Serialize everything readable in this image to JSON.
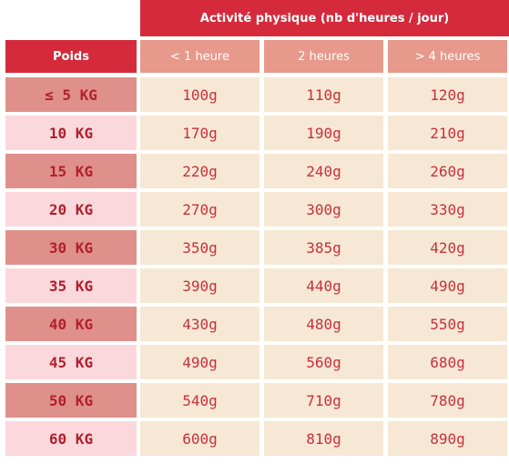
{
  "header": {
    "activity": "Activité physique (nb d'heures / jour)",
    "weight": "Poids",
    "columns": [
      "< 1 heure",
      "2 heures",
      "> 4 heures"
    ]
  },
  "rows": [
    {
      "weight": "≤ 5 KG",
      "values": [
        "100g",
        "110g",
        "120g"
      ]
    },
    {
      "weight": "10 KG",
      "values": [
        "170g",
        "190g",
        "210g"
      ]
    },
    {
      "weight": "15 KG",
      "values": [
        "220g",
        "240g",
        "260g"
      ]
    },
    {
      "weight": "20 KG",
      "values": [
        "270g",
        "300g",
        "330g"
      ]
    },
    {
      "weight": "30 KG",
      "values": [
        "350g",
        "385g",
        "420g"
      ]
    },
    {
      "weight": "35 KG",
      "values": [
        "390g",
        "440g",
        "490g"
      ]
    },
    {
      "weight": "40 KG",
      "values": [
        "430g",
        "480g",
        "550g"
      ]
    },
    {
      "weight": "45 KG",
      "values": [
        "490g",
        "560g",
        "680g"
      ]
    },
    {
      "weight": "50 KG",
      "values": [
        "540g",
        "710g",
        "780g"
      ]
    },
    {
      "weight": "60 KG",
      "values": [
        "600g",
        "810g",
        "890g"
      ]
    }
  ],
  "colors": {
    "header_red": "#d42a3c",
    "subheader_salmon": "#e7998b",
    "weight_dark": "#e0908a",
    "weight_light": "#fbd8dc",
    "value_bg": "#f6e8d4",
    "value_text": "#c8303e"
  }
}
